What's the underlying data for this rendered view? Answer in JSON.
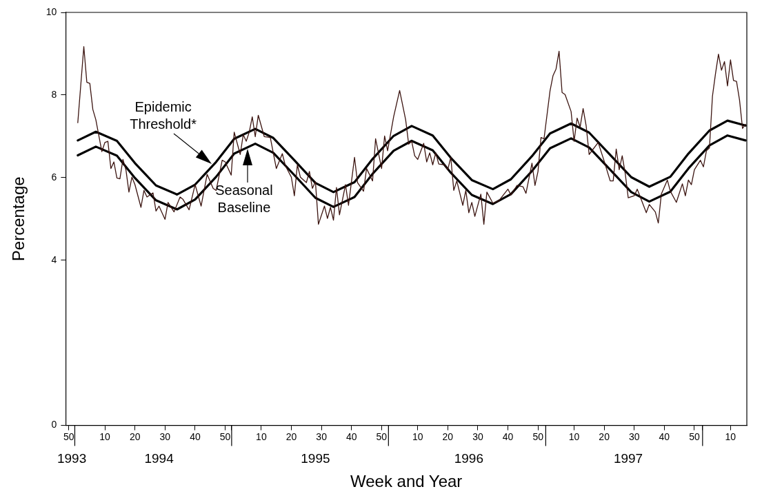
{
  "chart_data": {
    "type": "line",
    "xlabel": "Week and Year",
    "ylabel": "Percentage",
    "xlim": [
      "1993-12-11",
      "1998-04-14"
    ],
    "ylim": [
      0,
      10
    ],
    "yticks": [
      0,
      4,
      6,
      8,
      10
    ],
    "xticks": [
      {
        "value": "1993-12-18",
        "label": "50"
      },
      {
        "value": "1994-01-01",
        "label": null
      },
      {
        "value": "1994-03-12",
        "label": "10"
      },
      {
        "value": "1994-05-21",
        "label": "20"
      },
      {
        "value": "1994-07-30",
        "label": "30"
      },
      {
        "value": "1994-10-08",
        "label": "40"
      },
      {
        "value": "1994-12-17",
        "label": "50"
      },
      {
        "value": "1995-01-01",
        "label": null
      },
      {
        "value": "1995-03-11",
        "label": "10"
      },
      {
        "value": "1995-05-20",
        "label": "20"
      },
      {
        "value": "1995-07-29",
        "label": "30"
      },
      {
        "value": "1995-10-07",
        "label": "40"
      },
      {
        "value": "1995-12-16",
        "label": "50"
      },
      {
        "value": "1996-01-01",
        "label": null
      },
      {
        "value": "1996-03-09",
        "label": "10"
      },
      {
        "value": "1996-05-18",
        "label": "20"
      },
      {
        "value": "1996-07-27",
        "label": "30"
      },
      {
        "value": "1996-10-05",
        "label": "40"
      },
      {
        "value": "1996-12-14",
        "label": "50"
      },
      {
        "value": "1997-01-01",
        "label": null
      },
      {
        "value": "1997-03-08",
        "label": "10"
      },
      {
        "value": "1997-05-17",
        "label": "20"
      },
      {
        "value": "1997-07-26",
        "label": "30"
      },
      {
        "value": "1997-10-04",
        "label": "40"
      },
      {
        "value": "1997-12-13",
        "label": "50"
      },
      {
        "value": "1998-01-01",
        "label": null
      },
      {
        "value": "1998-03-07",
        "label": "10"
      }
    ],
    "x2lim": [
      "1993-12-11",
      "1998-04-14"
    ],
    "x2ticks": [
      {
        "value": "1993-12-25",
        "label": "1993"
      },
      {
        "value": "1994-07-16",
        "label": "1994"
      },
      {
        "value": "1995-07-15",
        "label": "1995"
      },
      {
        "value": "1996-07-06",
        "label": "1996"
      },
      {
        "value": "1997-07-12",
        "label": "1997"
      }
    ],
    "grid": false,
    "legend": false,
    "marker": "none",
    "line_style": "solid",
    "annotations": [
      {
        "text": "Epidemic Threshold*",
        "x": "1994-11-15",
        "y": 6.33
      },
      {
        "text": "Seasonal Baseline",
        "x": "1995-02-07",
        "y": 6.7
      }
    ],
    "series": [
      {
        "color": "#3b1410",
        "x": [
          "1994-01-08",
          "1994-01-22",
          "1994-01-29",
          "1994-02-05",
          "1994-02-12",
          "1994-02-19",
          "1994-03-05",
          "1994-03-12",
          "1994-03-19",
          "1994-03-26",
          "1994-04-02",
          "1994-04-09",
          "1994-04-16",
          "1994-04-23",
          "1994-04-30",
          "1994-05-07",
          "1994-05-14",
          "1994-05-21",
          "1994-06-04",
          "1994-06-11",
          "1994-06-18",
          "1994-07-02",
          "1994-07-09",
          "1994-07-16",
          "1994-07-30",
          "1994-08-06",
          "1994-08-20",
          "1994-09-03",
          "1994-09-10",
          "1994-09-24",
          "1994-10-08",
          "1994-10-22",
          "1994-11-05",
          "1994-11-19",
          "1994-11-26",
          "1994-12-10",
          "1994-12-17",
          "1994-12-31",
          "1995-01-07",
          "1995-01-21",
          "1995-01-28",
          "1995-02-04",
          "1995-02-11",
          "1995-02-18",
          "1995-02-25",
          "1995-03-04",
          "1995-03-18",
          "1995-04-01",
          "1995-04-15",
          "1995-04-29",
          "1995-05-06",
          "1995-05-20",
          "1995-05-27",
          "1995-06-03",
          "1995-06-10",
          "1995-06-24",
          "1995-07-01",
          "1995-07-08",
          "1995-07-15",
          "1995-07-22",
          "1995-08-05",
          "1995-08-12",
          "1995-08-19",
          "1995-08-26",
          "1995-09-02",
          "1995-09-09",
          "1995-09-23",
          "1995-09-30",
          "1995-10-14",
          "1995-10-21",
          "1995-11-04",
          "1995-11-11",
          "1995-11-25",
          "1995-12-02",
          "1995-12-16",
          "1995-12-23",
          "1995-12-30",
          "1996-01-13",
          "1996-01-27",
          "1996-02-10",
          "1996-02-17",
          "1996-02-24",
          "1996-03-02",
          "1996-03-09",
          "1996-03-23",
          "1996-03-30",
          "1996-04-06",
          "1996-04-13",
          "1996-04-20",
          "1996-04-27",
          "1996-05-11",
          "1996-05-18",
          "1996-05-25",
          "1996-06-01",
          "1996-06-08",
          "1996-06-22",
          "1996-06-29",
          "1996-07-06",
          "1996-07-13",
          "1996-07-20",
          "1996-08-03",
          "1996-08-10",
          "1996-08-17",
          "1996-08-31",
          "1996-09-14",
          "1996-10-05",
          "1996-10-12",
          "1996-10-26",
          "1996-11-09",
          "1996-11-16",
          "1996-11-30",
          "1996-12-07",
          "1996-12-14",
          "1996-12-21",
          "1996-12-28",
          "1997-01-11",
          "1997-01-18",
          "1997-01-25",
          "1997-02-01",
          "1997-02-08",
          "1997-02-15",
          "1997-03-01",
          "1997-03-08",
          "1997-03-15",
          "1997-03-22",
          "1997-03-29",
          "1997-04-05",
          "1997-04-12",
          "1997-05-03",
          "1997-05-17",
          "1997-05-31",
          "1997-06-07",
          "1997-06-14",
          "1997-06-21",
          "1997-06-28",
          "1997-07-05",
          "1997-07-12",
          "1997-07-26",
          "1997-08-02",
          "1997-08-09",
          "1997-08-23",
          "1997-08-30",
          "1997-09-13",
          "1997-09-20",
          "1997-09-27",
          "1997-10-11",
          "1997-10-18",
          "1997-11-01",
          "1997-11-15",
          "1997-11-22",
          "1997-11-29",
          "1997-12-06",
          "1997-12-13",
          "1997-12-27",
          "1998-01-03",
          "1998-01-10",
          "1998-01-17",
          "1998-01-24",
          "1998-01-31",
          "1998-02-07",
          "1998-02-14",
          "1998-02-21",
          "1998-02-28",
          "1998-03-07",
          "1998-03-14",
          "1998-03-21",
          "1998-03-28",
          "1998-04-04",
          "1998-04-11"
        ],
        "values": [
          7.33,
          9.17,
          8.31,
          8.28,
          7.65,
          7.4,
          6.63,
          6.85,
          6.88,
          6.22,
          6.38,
          5.99,
          5.97,
          6.44,
          6.19,
          5.65,
          6.01,
          5.83,
          5.28,
          5.69,
          5.53,
          5.63,
          5.19,
          5.31,
          4.99,
          5.4,
          5.17,
          5.53,
          5.47,
          5.22,
          5.83,
          5.31,
          6.08,
          5.74,
          5.69,
          6.42,
          6.38,
          6.06,
          7.1,
          6.56,
          7.04,
          6.88,
          7.1,
          7.47,
          6.99,
          7.51,
          6.99,
          6.97,
          6.22,
          6.58,
          6.29,
          6.01,
          5.56,
          6.31,
          6.01,
          5.88,
          6.15,
          5.74,
          5.9,
          4.87,
          5.31,
          5.01,
          5.28,
          4.97,
          5.76,
          5.1,
          5.83,
          5.33,
          6.49,
          5.88,
          5.67,
          6.22,
          5.92,
          6.94,
          6.22,
          7.01,
          6.65,
          7.47,
          8.11,
          7.4,
          6.81,
          6.88,
          6.53,
          6.44,
          6.83,
          6.38,
          6.6,
          6.31,
          6.6,
          6.33,
          6.31,
          6.19,
          6.49,
          5.69,
          5.92,
          5.33,
          5.69,
          5.15,
          5.4,
          5.06,
          5.6,
          4.87,
          5.65,
          5.38,
          5.44,
          5.72,
          5.58,
          5.81,
          5.78,
          5.62,
          6.35,
          5.81,
          6.15,
          6.97,
          6.94,
          8.1,
          8.47,
          8.63,
          9.06,
          8.06,
          8.01,
          7.6,
          6.88,
          7.44,
          7.22,
          7.67,
          7.26,
          6.56,
          6.85,
          6.4,
          5.92,
          5.92,
          6.69,
          6.19,
          6.53,
          6.1,
          5.51,
          5.56,
          5.72,
          5.53,
          5.15,
          5.35,
          5.17,
          4.9,
          5.6,
          5.94,
          5.67,
          5.4,
          5.85,
          5.56,
          5.94,
          5.83,
          6.19,
          6.42,
          6.26,
          6.65,
          6.72,
          7.97,
          8.51,
          8.99,
          8.6,
          8.81,
          8.22,
          8.85,
          8.35,
          8.33,
          7.88,
          7.19,
          7.29
        ]
      },
      {
        "color": "#000000",
        "x": [
          "1994-01-08",
          "1994-02-19",
          "1994-04-09",
          "1994-05-21",
          "1994-07-09",
          "1994-08-27",
          "1994-10-08",
          "1994-11-26",
          "1995-01-07",
          "1995-02-25",
          "1995-04-08",
          "1995-05-27",
          "1995-07-15",
          "1995-08-26",
          "1995-10-14",
          "1995-11-25",
          "1996-01-13",
          "1996-02-24",
          "1996-04-13",
          "1996-05-25",
          "1996-07-13",
          "1996-08-31",
          "1996-10-12",
          "1996-11-30",
          "1997-01-11",
          "1997-03-01",
          "1997-04-12",
          "1997-05-31",
          "1997-07-19",
          "1997-08-30",
          "1997-10-18",
          "1997-11-29",
          "1998-01-17",
          "1998-02-28",
          "1998-04-11"
        ],
        "values": [
          6.9,
          7.11,
          6.89,
          6.35,
          5.81,
          5.59,
          5.83,
          6.38,
          6.94,
          7.18,
          6.96,
          6.42,
          5.87,
          5.65,
          5.89,
          6.45,
          7.01,
          7.25,
          7.02,
          6.48,
          5.94,
          5.72,
          5.96,
          6.52,
          7.07,
          7.31,
          7.09,
          6.55,
          6.01,
          5.78,
          6.02,
          6.58,
          7.14,
          7.38,
          7.26
        ]
      },
      {
        "color": "#000000",
        "x": [
          "1994-01-08",
          "1994-02-19",
          "1994-04-09",
          "1994-05-21",
          "1994-07-09",
          "1994-08-27",
          "1994-10-08",
          "1994-11-26",
          "1995-01-07",
          "1995-02-25",
          "1995-04-08",
          "1995-05-27",
          "1995-07-15",
          "1995-08-26",
          "1995-10-14",
          "1995-11-25",
          "1996-01-13",
          "1996-02-24",
          "1996-04-13",
          "1996-05-25",
          "1996-07-13",
          "1996-08-31",
          "1996-10-12",
          "1996-11-30",
          "1997-01-11",
          "1997-03-01",
          "1997-04-12",
          "1997-05-31",
          "1997-07-19",
          "1997-08-30",
          "1997-10-18",
          "1997-11-29",
          "1998-01-17",
          "1998-02-28",
          "1998-04-11"
        ],
        "values": [
          6.54,
          6.75,
          6.53,
          5.99,
          5.45,
          5.23,
          5.47,
          6.02,
          6.58,
          6.82,
          6.6,
          6.06,
          5.51,
          5.29,
          5.53,
          6.09,
          6.65,
          6.89,
          6.66,
          6.12,
          5.58,
          5.36,
          5.6,
          6.16,
          6.71,
          6.95,
          6.73,
          6.19,
          5.65,
          5.42,
          5.66,
          6.22,
          6.78,
          7.02,
          6.9
        ]
      }
    ]
  }
}
